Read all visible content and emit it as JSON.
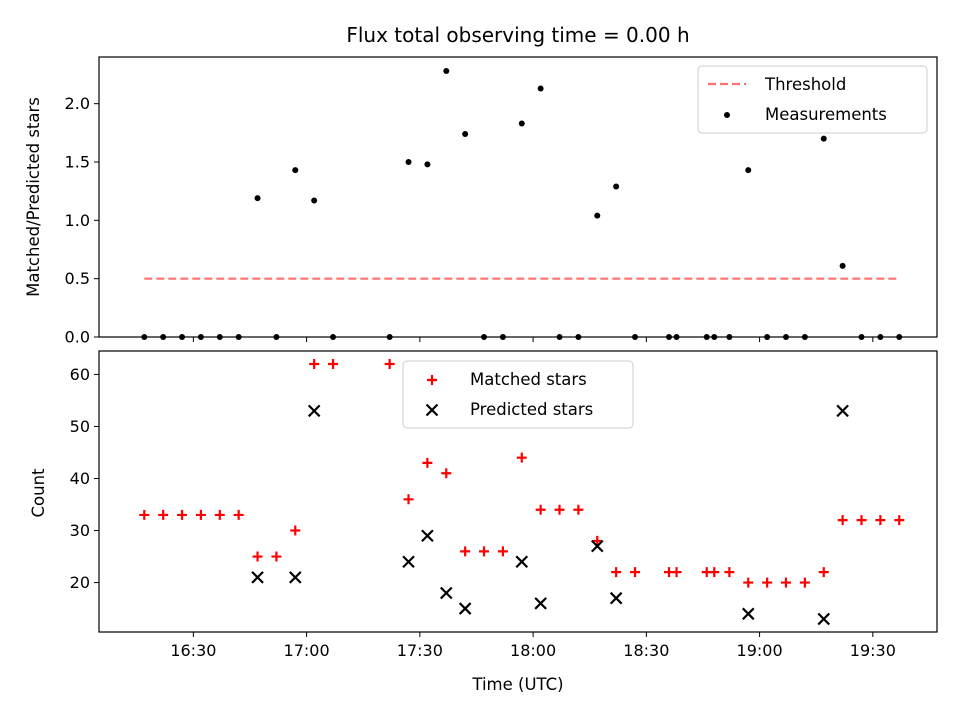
{
  "chart_data": [
    {
      "type": "scatter",
      "title": "Flux total observing time = 0.00 h",
      "xlabel": "",
      "ylabel": "Matched/Predicted stars",
      "ylim": [
        0,
        2.4
      ],
      "yticks": [
        "0.0",
        "0.5",
        "1.0",
        "1.5",
        "2.0"
      ],
      "ytick_values": [
        0,
        0.5,
        1.0,
        1.5,
        2.0
      ],
      "legend_position": "top-right",
      "series": [
        {
          "name": "Threshold",
          "style": "dashed-line",
          "color": "#ff7070",
          "x": [
            "16:17",
            "19:37"
          ],
          "y": [
            0.5,
            0.5
          ]
        },
        {
          "name": "Measurements",
          "style": "dots",
          "color": "#000000",
          "x": [
            "16:17",
            "16:22",
            "16:27",
            "16:32",
            "16:37",
            "16:42",
            "16:47",
            "16:52",
            "16:57",
            "17:02",
            "17:07",
            "17:22",
            "17:27",
            "17:32",
            "17:37",
            "17:42",
            "17:47",
            "17:52",
            "17:57",
            "18:02",
            "18:07",
            "18:12",
            "18:17",
            "18:22",
            "18:27",
            "18:36",
            "18:38",
            "18:46",
            "18:48",
            "18:52",
            "18:57",
            "19:02",
            "19:07",
            "19:12",
            "19:17",
            "19:22",
            "19:27",
            "19:32",
            "19:37"
          ],
          "y": [
            0,
            0,
            0,
            0,
            0,
            0,
            1.19,
            0,
            1.43,
            1.17,
            0,
            0,
            1.5,
            1.48,
            2.28,
            1.74,
            0,
            0,
            1.83,
            2.13,
            0,
            0,
            1.04,
            1.29,
            0,
            0,
            0,
            0,
            0,
            0,
            1.43,
            0,
            0,
            0,
            1.7,
            0.61,
            0,
            0,
            0
          ]
        }
      ]
    },
    {
      "type": "scatter",
      "title": "",
      "xlabel": "Time (UTC)",
      "ylabel": "Count",
      "ylim": [
        10.5,
        64.5
      ],
      "yticks": [
        "20",
        "30",
        "40",
        "50",
        "60"
      ],
      "ytick_values": [
        20,
        30,
        40,
        50,
        60
      ],
      "xlim": [
        "16:05",
        "19:47"
      ],
      "xticks": [
        "16:30",
        "17:00",
        "17:30",
        "18:00",
        "18:30",
        "19:00",
        "19:30"
      ],
      "legend_position": "top-center",
      "series": [
        {
          "name": "Matched stars",
          "marker": "plus",
          "color": "#ff0000",
          "x": [
            "16:17",
            "16:22",
            "16:27",
            "16:32",
            "16:37",
            "16:42",
            "16:47",
            "16:52",
            "16:57",
            "17:02",
            "17:07",
            "17:22",
            "17:27",
            "17:32",
            "17:37",
            "17:42",
            "17:47",
            "17:52",
            "17:57",
            "18:02",
            "18:07",
            "18:12",
            "18:17",
            "18:22",
            "18:27",
            "18:36",
            "18:38",
            "18:46",
            "18:48",
            "18:52",
            "18:57",
            "19:02",
            "19:07",
            "19:12",
            "19:17",
            "19:22",
            "19:27",
            "19:32",
            "19:37"
          ],
          "y": [
            33,
            33,
            33,
            33,
            33,
            33,
            25,
            25,
            30,
            62,
            62,
            62,
            36,
            43,
            41,
            26,
            26,
            26,
            44,
            34,
            34,
            34,
            28,
            22,
            22,
            22,
            22,
            22,
            22,
            22,
            20,
            20,
            20,
            20,
            22,
            32,
            32,
            32,
            32
          ]
        },
        {
          "name": "Predicted stars",
          "marker": "x",
          "color": "#000000",
          "x": [
            "16:47",
            "16:57",
            "17:02",
            "17:27",
            "17:32",
            "17:37",
            "17:42",
            "17:57",
            "18:02",
            "18:17",
            "18:22",
            "18:57",
            "19:17",
            "19:22"
          ],
          "y": [
            21,
            21,
            53,
            24,
            29,
            18,
            15,
            24,
            16,
            27,
            17,
            14,
            13,
            53
          ]
        }
      ]
    }
  ]
}
